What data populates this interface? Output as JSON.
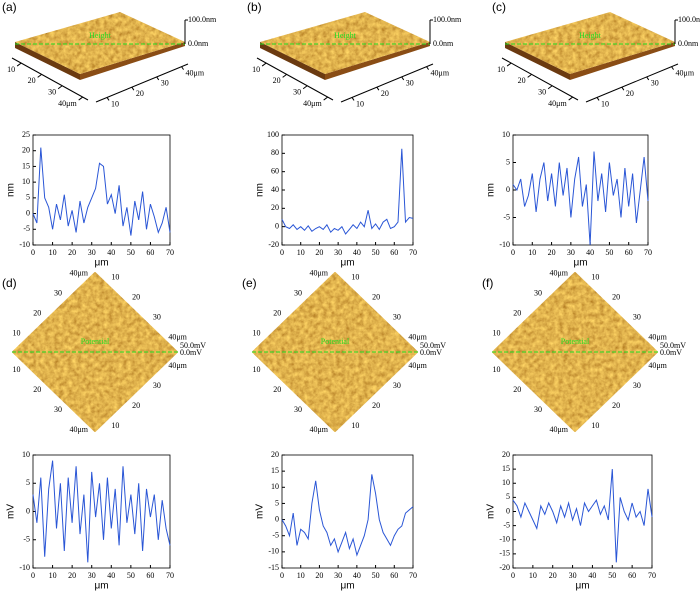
{
  "images": [
    {
      "label": "(a)",
      "overlay": "Height",
      "scale_top": "100.0nm",
      "scale_bottom": "0.0nm",
      "axes": [
        [
          "10",
          "20",
          "30",
          "40μm"
        ],
        [
          "10",
          "20",
          "30",
          "40μm"
        ]
      ]
    },
    {
      "label": "(b)",
      "overlay": "Height",
      "scale_top": "100.0nm",
      "scale_bottom": "0.0nm",
      "axes": [
        [
          "10",
          "20",
          "30",
          "40μm"
        ],
        [
          "10",
          "20",
          "30",
          "40μm"
        ]
      ]
    },
    {
      "label": "(c)",
      "overlay": "Height",
      "scale_top": "100.0nm",
      "scale_bottom": "0.0nm",
      "axes": [
        [
          "10",
          "20",
          "30",
          "40μm"
        ],
        [
          "10",
          "20",
          "30",
          "40μm"
        ]
      ]
    },
    {
      "label": "(d)",
      "overlay": "Potential",
      "scale_top": "50.0mV",
      "scale_bottom": "0.0mV",
      "axes": [
        [
          "10",
          "20",
          "30",
          "40μm"
        ],
        [
          "10",
          "20",
          "30",
          "40μm"
        ],
        [
          "10",
          "20",
          "30",
          "40μm"
        ],
        [
          "10",
          "20",
          "30",
          "40μm"
        ]
      ]
    },
    {
      "label": "(e)",
      "overlay": "Potential",
      "scale_top": "50.0mV",
      "scale_bottom": "0.0mV",
      "axes": [
        [
          "10",
          "20",
          "30",
          "40μm"
        ],
        [
          "10",
          "20",
          "30",
          "40μm"
        ],
        [
          "10",
          "20",
          "30",
          "40μm"
        ],
        [
          "10",
          "20",
          "30",
          "40μm"
        ]
      ]
    },
    {
      "label": "(f)",
      "overlay": "Potential",
      "scale_top": "50.0mV",
      "scale_bottom": "0.0mV",
      "axes": [
        [
          "10",
          "20",
          "30",
          "40μm"
        ],
        [
          "10",
          "20",
          "30",
          "40μm"
        ],
        [
          "10",
          "20",
          "30",
          "40μm"
        ],
        [
          "10",
          "20",
          "30",
          "40μm"
        ]
      ]
    }
  ],
  "chart_data": [
    {
      "type": "line",
      "x_label": "μm",
      "y_label": "nm",
      "color": "#2a56d6",
      "xlim": [
        0,
        70
      ],
      "xticks": [
        0,
        10,
        20,
        30,
        40,
        50,
        60,
        70
      ],
      "ylim": [
        -10,
        25
      ],
      "yticks": [
        -10,
        -5,
        0,
        5,
        10,
        15,
        20,
        25
      ],
      "x": [
        0,
        2,
        4,
        6,
        8,
        10,
        12,
        14,
        16,
        18,
        20,
        22,
        24,
        26,
        28,
        30,
        32,
        34,
        36,
        38,
        40,
        42,
        44,
        46,
        48,
        50,
        52,
        54,
        56,
        58,
        60,
        62,
        64,
        66,
        68,
        70
      ],
      "values": [
        0,
        -3,
        21,
        5,
        2,
        -5,
        3,
        -2,
        6,
        -4,
        1,
        -6,
        4,
        -3,
        2,
        5,
        8,
        16,
        15,
        3,
        6,
        0,
        9,
        -4,
        2,
        -7,
        4,
        -2,
        7,
        -5,
        3,
        -1,
        -6,
        -3,
        2,
        -6
      ]
    },
    {
      "type": "line",
      "x_label": "μm",
      "y_label": "nm",
      "color": "#2a56d6",
      "xlim": [
        0,
        70
      ],
      "xticks": [
        0,
        10,
        20,
        30,
        40,
        50,
        60,
        70
      ],
      "ylim": [
        -20,
        100
      ],
      "yticks": [
        -20,
        0,
        20,
        40,
        60,
        80,
        100
      ],
      "x": [
        0,
        2,
        4,
        6,
        8,
        10,
        12,
        14,
        16,
        18,
        20,
        22,
        24,
        26,
        28,
        30,
        32,
        34,
        36,
        38,
        40,
        42,
        44,
        46,
        48,
        50,
        52,
        54,
        56,
        58,
        60,
        62,
        64,
        66,
        68,
        70
      ],
      "values": [
        8,
        0,
        -2,
        2,
        -3,
        0,
        -4,
        1,
        -5,
        -2,
        0,
        -3,
        2,
        -6,
        -2,
        -4,
        0,
        -8,
        -3,
        2,
        -2,
        5,
        0,
        18,
        -2,
        3,
        -3,
        5,
        8,
        -2,
        0,
        5,
        85,
        5,
        10,
        9
      ]
    },
    {
      "type": "line",
      "x_label": "μm",
      "y_label": "nm",
      "color": "#2a56d6",
      "xlim": [
        0,
        70
      ],
      "xticks": [
        0,
        10,
        20,
        30,
        40,
        50,
        60,
        70
      ],
      "ylim": [
        -10,
        10
      ],
      "yticks": [
        -10,
        -5,
        0,
        5,
        10
      ],
      "x": [
        0,
        2,
        4,
        6,
        8,
        10,
        12,
        14,
        16,
        18,
        20,
        22,
        24,
        26,
        28,
        30,
        32,
        34,
        36,
        38,
        40,
        42,
        44,
        46,
        48,
        50,
        52,
        54,
        56,
        58,
        60,
        62,
        64,
        66,
        68,
        70
      ],
      "values": [
        1,
        0,
        2,
        -3,
        -1,
        3,
        -4,
        2,
        5,
        -2,
        3,
        -3,
        5,
        -1,
        4,
        -5,
        2,
        6,
        -3,
        1,
        -10,
        7,
        -2,
        3,
        -4,
        5,
        -1,
        2,
        -5,
        4,
        -3,
        3,
        -6,
        0,
        6,
        -2
      ]
    },
    {
      "type": "line",
      "x_label": "μm",
      "y_label": "mV",
      "color": "#2a56d6",
      "xlim": [
        0,
        70
      ],
      "xticks": [
        0,
        10,
        20,
        30,
        40,
        50,
        60,
        70
      ],
      "ylim": [
        -10,
        10
      ],
      "yticks": [
        -10,
        -5,
        0,
        5,
        10
      ],
      "x": [
        0,
        2,
        4,
        6,
        8,
        10,
        12,
        14,
        16,
        18,
        20,
        22,
        24,
        26,
        28,
        30,
        32,
        34,
        36,
        38,
        40,
        42,
        44,
        46,
        48,
        50,
        52,
        54,
        56,
        58,
        60,
        62,
        64,
        66,
        68,
        70
      ],
      "values": [
        3,
        -2,
        6,
        -8,
        4,
        9,
        -3,
        5,
        -7,
        6,
        -2,
        8,
        -4,
        3,
        -9,
        7,
        -1,
        5,
        -5,
        6,
        -3,
        4,
        -6,
        8,
        -2,
        3,
        -4,
        5,
        -7,
        4,
        -1,
        3,
        -5,
        2,
        -3,
        -6
      ]
    },
    {
      "type": "line",
      "x_label": "μm",
      "y_label": "mV",
      "color": "#2a56d6",
      "xlim": [
        0,
        70
      ],
      "xticks": [
        0,
        10,
        20,
        30,
        40,
        50,
        60,
        70
      ],
      "ylim": [
        -15,
        20
      ],
      "yticks": [
        -15,
        -10,
        -5,
        0,
        5,
        10,
        15,
        20
      ],
      "x": [
        0,
        2,
        4,
        6,
        8,
        10,
        12,
        14,
        16,
        18,
        20,
        22,
        24,
        26,
        28,
        30,
        32,
        34,
        36,
        38,
        40,
        42,
        44,
        46,
        48,
        50,
        52,
        54,
        56,
        58,
        60,
        62,
        64,
        66,
        68,
        70
      ],
      "values": [
        0,
        -2,
        -5,
        2,
        -8,
        -3,
        -4,
        -6,
        5,
        12,
        3,
        -2,
        -4,
        -8,
        -6,
        -10,
        -7,
        -4,
        -9,
        -6,
        -11,
        -8,
        -5,
        0,
        14,
        8,
        0,
        -4,
        -6,
        -8,
        -5,
        -3,
        -2,
        2,
        3,
        4
      ]
    },
    {
      "type": "line",
      "x_label": "μm",
      "y_label": "mV",
      "color": "#2a56d6",
      "xlim": [
        0,
        70
      ],
      "xticks": [
        0,
        10,
        20,
        30,
        40,
        50,
        60,
        70
      ],
      "ylim": [
        -20,
        20
      ],
      "yticks": [
        -20,
        -15,
        -10,
        -5,
        0,
        5,
        10,
        15,
        20
      ],
      "x": [
        0,
        2,
        4,
        6,
        8,
        10,
        12,
        14,
        16,
        18,
        20,
        22,
        24,
        26,
        28,
        30,
        32,
        34,
        36,
        38,
        40,
        42,
        44,
        46,
        48,
        50,
        52,
        54,
        56,
        58,
        60,
        62,
        64,
        66,
        68,
        70
      ],
      "values": [
        4,
        2,
        -2,
        3,
        0,
        -3,
        -6,
        2,
        -1,
        3,
        0,
        -4,
        2,
        -2,
        3,
        -3,
        1,
        -5,
        3,
        0,
        2,
        4,
        -1,
        2,
        -3,
        15,
        -18,
        5,
        0,
        -3,
        3,
        -2,
        0,
        -5,
        8,
        -2
      ]
    }
  ]
}
